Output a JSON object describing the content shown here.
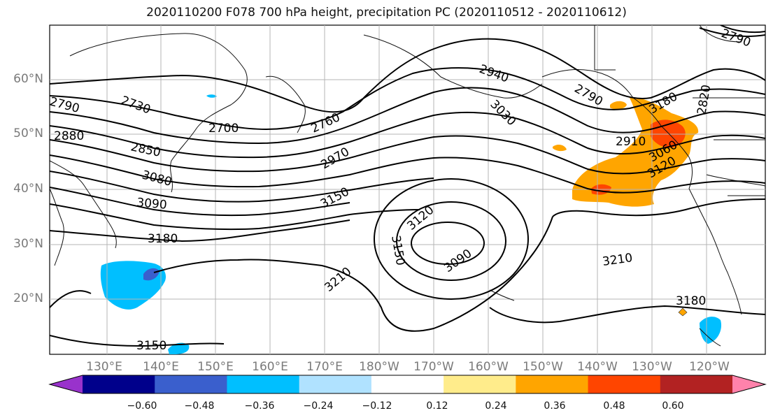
{
  "title": "2020110200 F078 700 hPa height, precipitation PC (2020110512 - 2020110612)",
  "lat_labels": [
    "60°N",
    "50°N",
    "40°N",
    "30°N",
    "20°N"
  ],
  "lon_labels": [
    "130°E",
    "140°E",
    "150°E",
    "160°E",
    "170°E",
    "180°W",
    "170°W",
    "160°W",
    "150°W",
    "140°W",
    "130°W",
    "120°W"
  ],
  "colorbar": {
    "colors": [
      "#9932cc",
      "#00008b",
      "#3a5fcd",
      "#00bfff",
      "#b0e2ff",
      "#ffffff",
      "#ffec8b",
      "#ffa500",
      "#ff4500",
      "#b22222",
      "#ff82ab"
    ],
    "tick_labels": [
      "−0.60",
      "−0.48",
      "−0.36",
      "−0.24",
      "−0.12",
      "0.12",
      "0.24",
      "0.36",
      "0.48",
      "0.60"
    ]
  },
  "contour_labels": [
    {
      "text": "2790"
    },
    {
      "text": "2880"
    },
    {
      "text": "2730"
    },
    {
      "text": "2850"
    },
    {
      "text": "3080"
    },
    {
      "text": "3090"
    },
    {
      "text": "3180"
    },
    {
      "text": "3150"
    },
    {
      "text": "2700"
    },
    {
      "text": "2760"
    },
    {
      "text": "2970"
    },
    {
      "text": "3150"
    },
    {
      "text": "2940"
    },
    {
      "text": "3030"
    },
    {
      "text": "3120"
    },
    {
      "text": "3150"
    },
    {
      "text": "3090"
    },
    {
      "text": "3210"
    },
    {
      "text": "2790"
    },
    {
      "text": "3180"
    },
    {
      "text": "2820"
    },
    {
      "text": "2910"
    },
    {
      "text": "3060"
    },
    {
      "text": "3120"
    },
    {
      "text": "3210"
    },
    {
      "text": "3180"
    },
    {
      "text": "2790"
    }
  ]
}
